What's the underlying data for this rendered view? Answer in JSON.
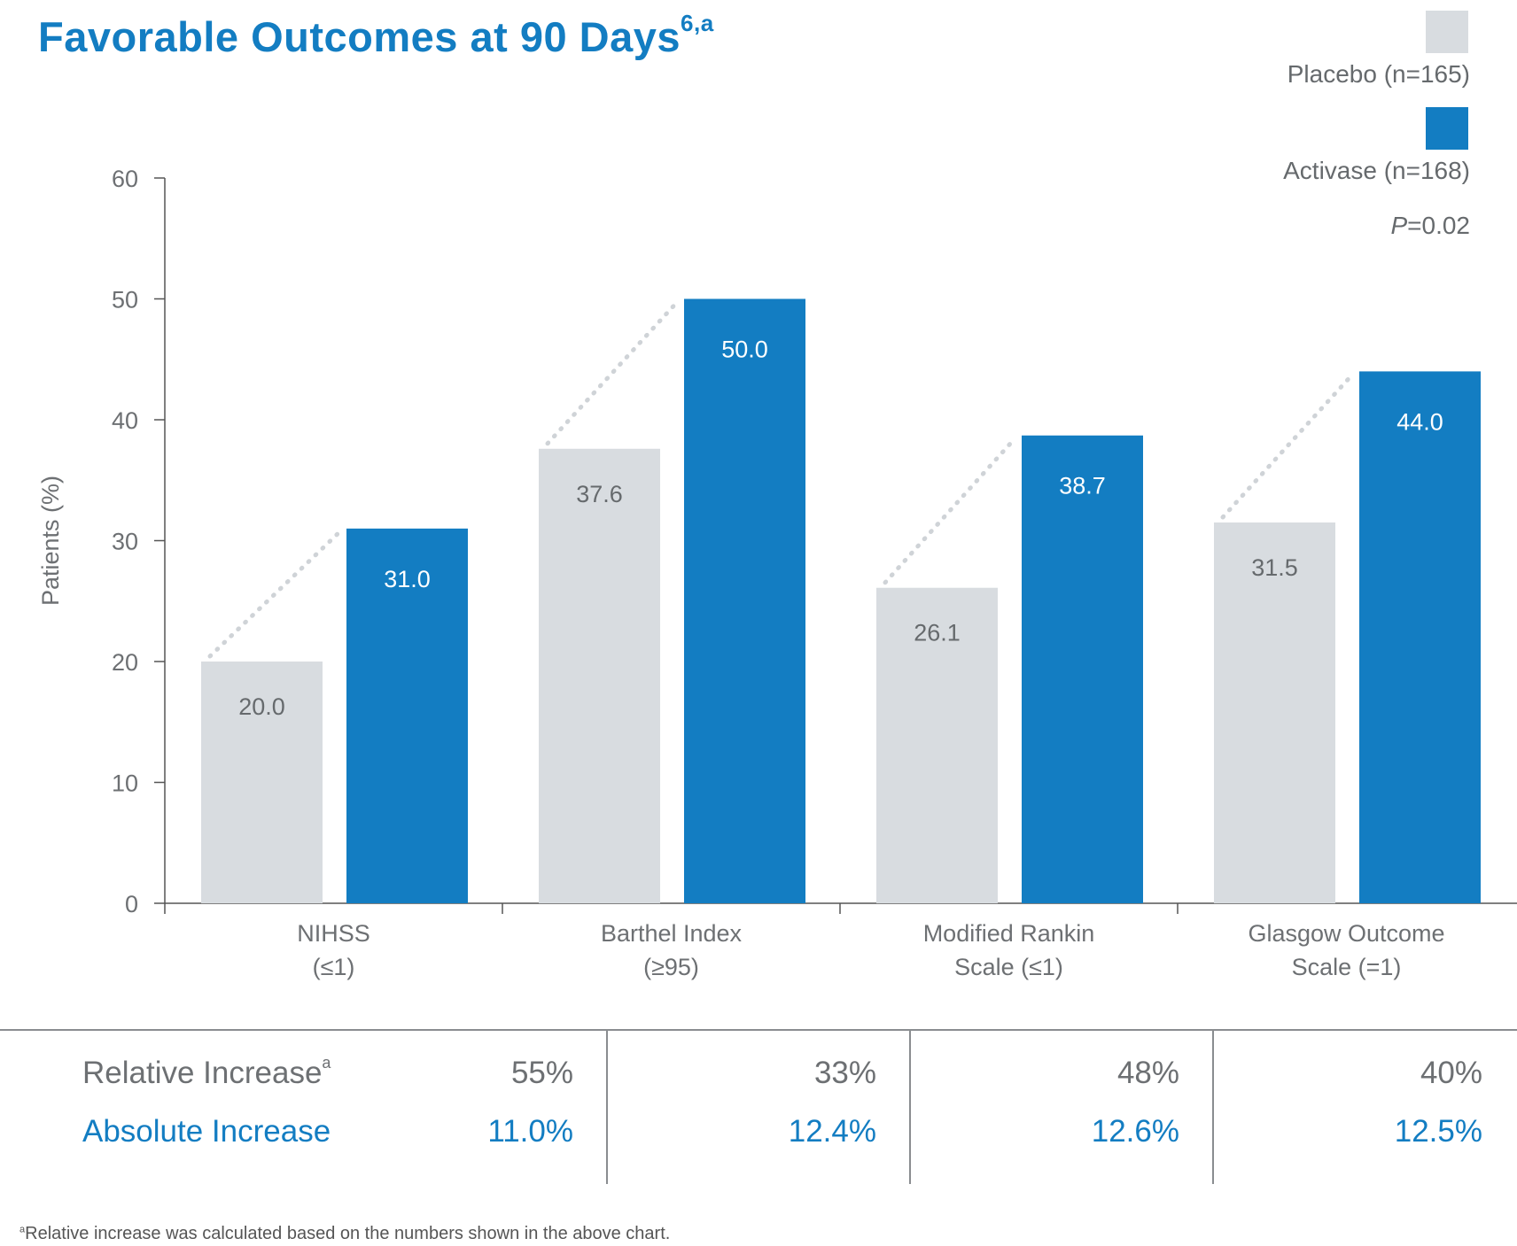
{
  "title": {
    "text": "Favorable Outcomes at 90 Days",
    "superscript": "6,a"
  },
  "legend": {
    "items": [
      {
        "label": "Placebo (n=165)",
        "color": "#d8dce0"
      },
      {
        "label": "Activase (n=168)",
        "color": "#137dc2"
      }
    ],
    "p_value_prefix": "P",
    "p_value_rest": "=0.02"
  },
  "chart_data": {
    "type": "bar",
    "ylabel": "Patients (%)",
    "ylim": [
      0,
      60
    ],
    "yticks": [
      0,
      10,
      20,
      30,
      40,
      50,
      60
    ],
    "categories": [
      [
        "NIHSS",
        "(≤1)"
      ],
      [
        "Barthel Index",
        "(≥95)"
      ],
      [
        "Modified Rankin",
        "Scale (≤1)"
      ],
      [
        "Glasgow Outcome",
        "Scale (=1)"
      ]
    ],
    "series": [
      {
        "name": "Placebo (n=165)",
        "color": "#d8dce0",
        "label_color": "#666a6d",
        "values": [
          20.0,
          37.6,
          26.1,
          31.5
        ],
        "labels": [
          "20.0",
          "37.6",
          "26.1",
          "31.5"
        ]
      },
      {
        "name": "Activase (n=168)",
        "color": "#137dc2",
        "label_color": "#ffffff",
        "values": [
          31.0,
          50.0,
          38.7,
          44.0
        ],
        "labels": [
          "31.0",
          "50.0",
          "38.7",
          "44.0"
        ]
      }
    ]
  },
  "table": {
    "relative_label": "Relative Increase",
    "relative_sup": "a",
    "absolute_label": "Absolute Increase",
    "relative_values": [
      "55%",
      "33%",
      "48%",
      "40%"
    ],
    "absolute_values": [
      "11.0%",
      "12.4%",
      "12.6%",
      "12.5%"
    ]
  },
  "footnote": {
    "sup": "a",
    "text": "Relative increase was calculated based on the numbers shown in the above chart."
  }
}
